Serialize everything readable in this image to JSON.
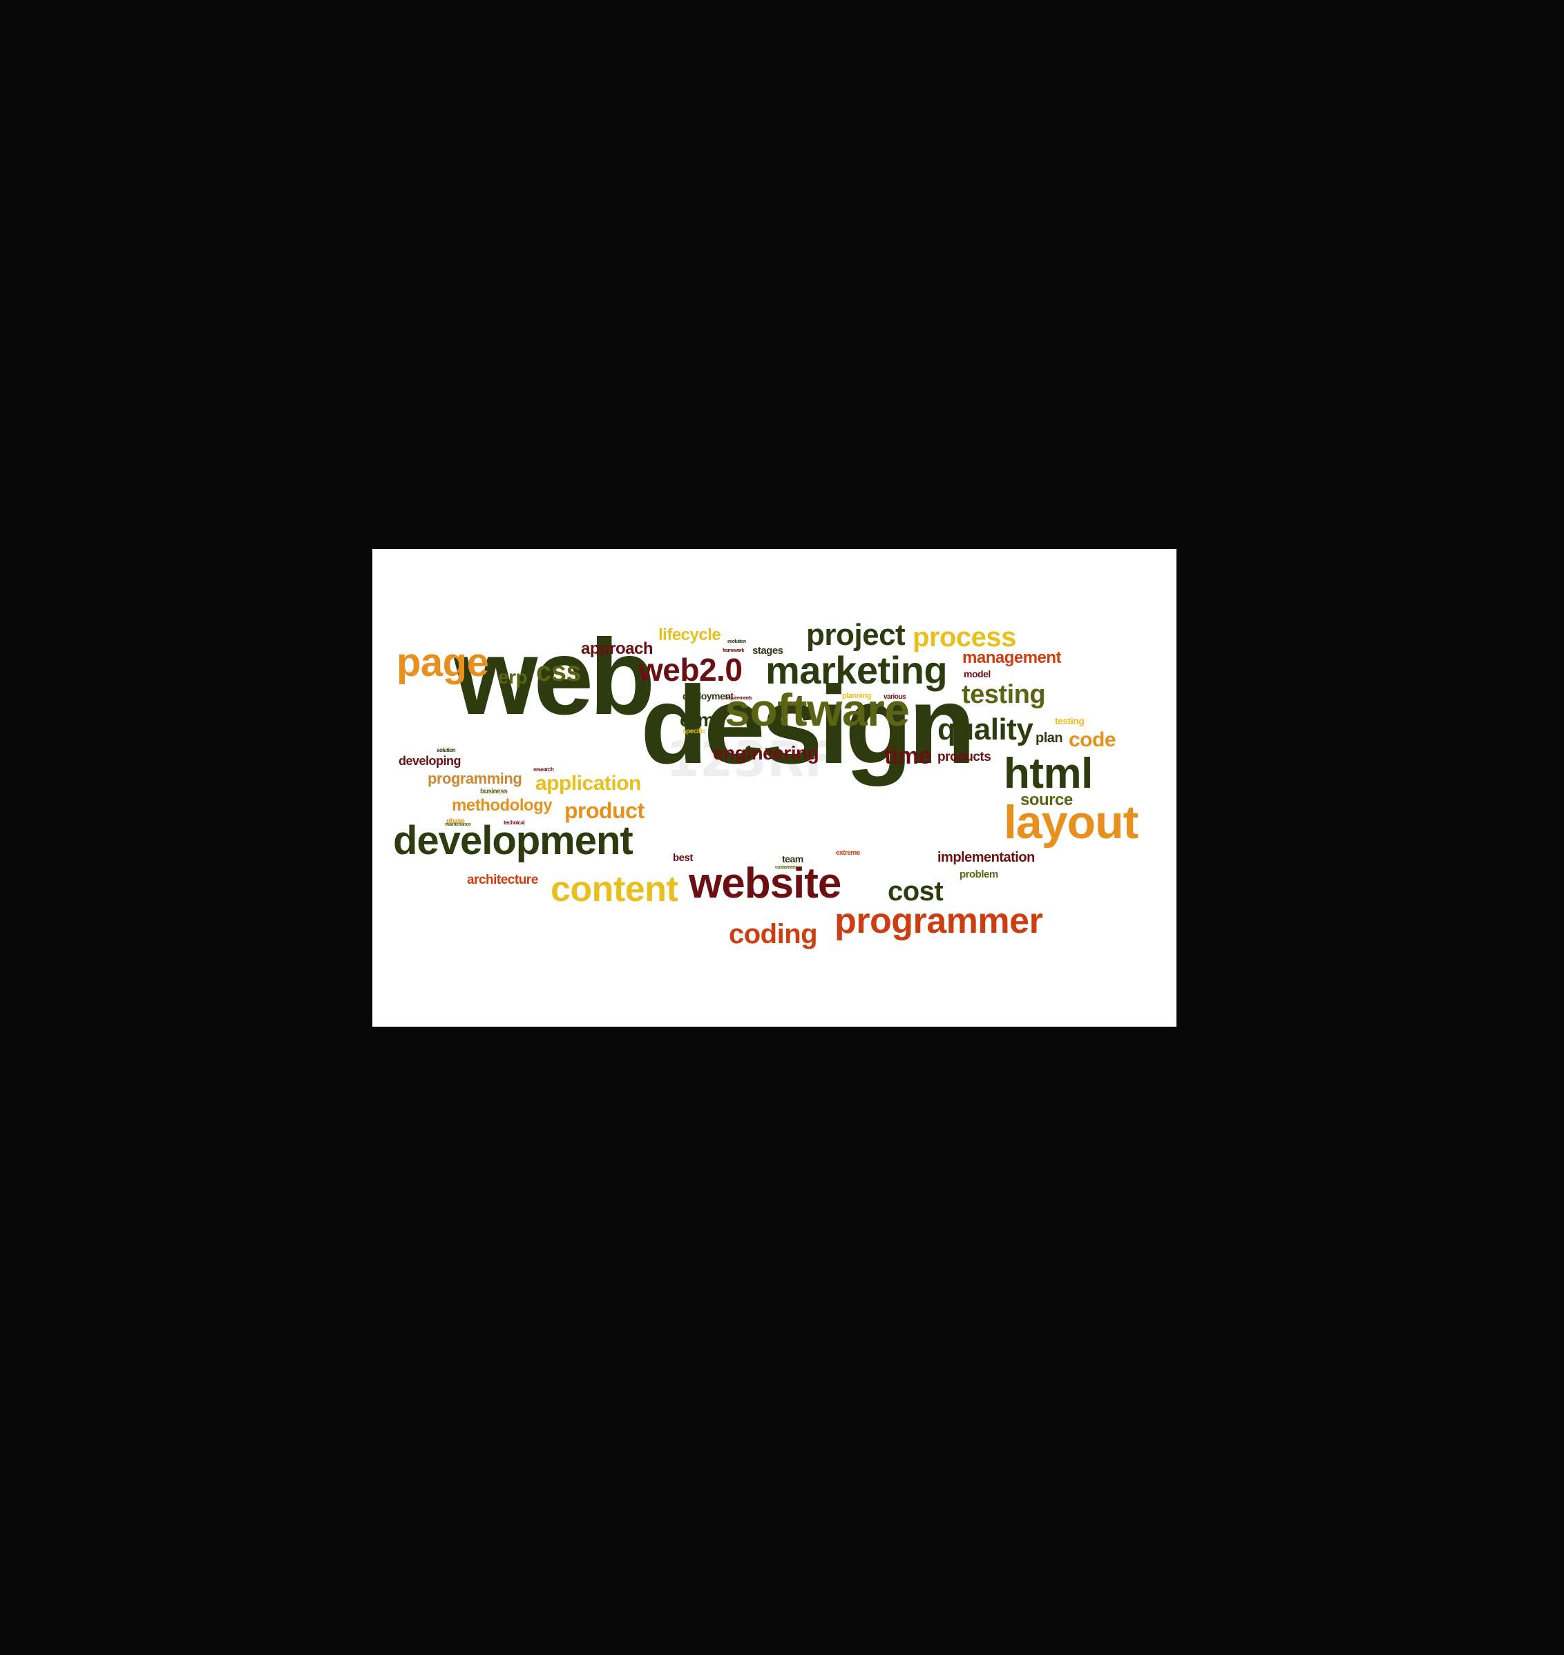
{
  "palette": {
    "dark_green": "#2d3b0f",
    "olive": "#5b6414",
    "maroon": "#6b0f12",
    "orange": "#e8901e",
    "yellow": "#e7bf1e",
    "red": "#cc3d10",
    "tan": "#c98a32",
    "background_outer": "#070707",
    "background_card": "#ffffff"
  },
  "words": [
    {
      "text": "web",
      "color": "#2d3b0f"
    },
    {
      "text": "design",
      "color": "#2d3b0f"
    },
    {
      "text": "software",
      "color": "#5b6414"
    },
    {
      "text": "development",
      "color": "#2d3b0f"
    },
    {
      "text": "website",
      "color": "#6b0f12"
    },
    {
      "text": "layout",
      "color": "#e8901e"
    },
    {
      "text": "html",
      "color": "#2d3b0f"
    },
    {
      "text": "marketing",
      "color": "#2d3b0f"
    },
    {
      "text": "programmer",
      "color": "#cc3d10"
    },
    {
      "text": "content",
      "color": "#e7bf1e"
    },
    {
      "text": "page",
      "color": "#e8901e"
    },
    {
      "text": "web2.0",
      "color": "#6b0f12"
    },
    {
      "text": "project",
      "color": "#2d3b0f"
    },
    {
      "text": "process",
      "color": "#e7bf1e"
    },
    {
      "text": "quality",
      "color": "#2d3b0f"
    },
    {
      "text": "testing",
      "color": "#5b6414"
    },
    {
      "text": "coding",
      "color": "#cc3d10"
    },
    {
      "text": "css",
      "color": "#5b6414"
    },
    {
      "text": "cost",
      "color": "#2d3b0f"
    },
    {
      "text": "time",
      "color": "#6b0f12"
    },
    {
      "text": "code",
      "color": "#e8901e"
    },
    {
      "text": "product",
      "color": "#e8901e"
    },
    {
      "text": "application",
      "color": "#e7bf1e"
    },
    {
      "text": "engineering",
      "color": "#6b0f12"
    },
    {
      "text": "management",
      "color": "#cc3d10"
    },
    {
      "text": "methodology",
      "color": "#e8901e"
    },
    {
      "text": "programming",
      "color": "#c98a32"
    },
    {
      "text": "approach",
      "color": "#6b0f12"
    },
    {
      "text": "lifecycle",
      "color": "#e7bf1e"
    },
    {
      "text": "erp",
      "color": "#5b6414"
    },
    {
      "text": "crm",
      "color": "#2d3b0f"
    },
    {
      "text": "source",
      "color": "#5b6414"
    },
    {
      "text": "architecture",
      "color": "#cc3d10"
    },
    {
      "text": "implementation",
      "color": "#6b0f12"
    },
    {
      "text": "developing",
      "color": "#6b0f12"
    },
    {
      "text": "plan",
      "color": "#2d3b0f"
    },
    {
      "text": "products",
      "color": "#6b0f12"
    },
    {
      "text": "stages",
      "color": "#2d3b0f"
    },
    {
      "text": "deployment",
      "color": "#2d3b0f"
    },
    {
      "text": "model",
      "color": "#6b0f12"
    },
    {
      "text": "problem",
      "color": "#5b6414"
    },
    {
      "text": "best",
      "color": "#6b0f12"
    },
    {
      "text": "team",
      "color": "#2d3b0f"
    },
    {
      "text": "business",
      "color": "#5b6414"
    },
    {
      "text": "testing",
      "color": "#e7bf1e"
    },
    {
      "text": "planning",
      "color": "#e7bf1e"
    },
    {
      "text": "various",
      "color": "#6b0f12"
    },
    {
      "text": "specific",
      "color": "#e7bf1e"
    },
    {
      "text": "phase",
      "color": "#e8901e"
    },
    {
      "text": "extreme",
      "color": "#cc3d10"
    },
    {
      "text": "solution",
      "color": "#2d3b0f"
    },
    {
      "text": "maintenance",
      "color": "#5b6414"
    },
    {
      "text": "technical",
      "color": "#6b0f12"
    },
    {
      "text": "research",
      "color": "#6b0f12"
    },
    {
      "text": "evolution",
      "color": "#2d3b0f"
    },
    {
      "text": "framework",
      "color": "#6b0f12"
    },
    {
      "text": "requirements",
      "color": "#6b0f12"
    },
    {
      "text": "customers",
      "color": "#5b6414"
    }
  ]
}
